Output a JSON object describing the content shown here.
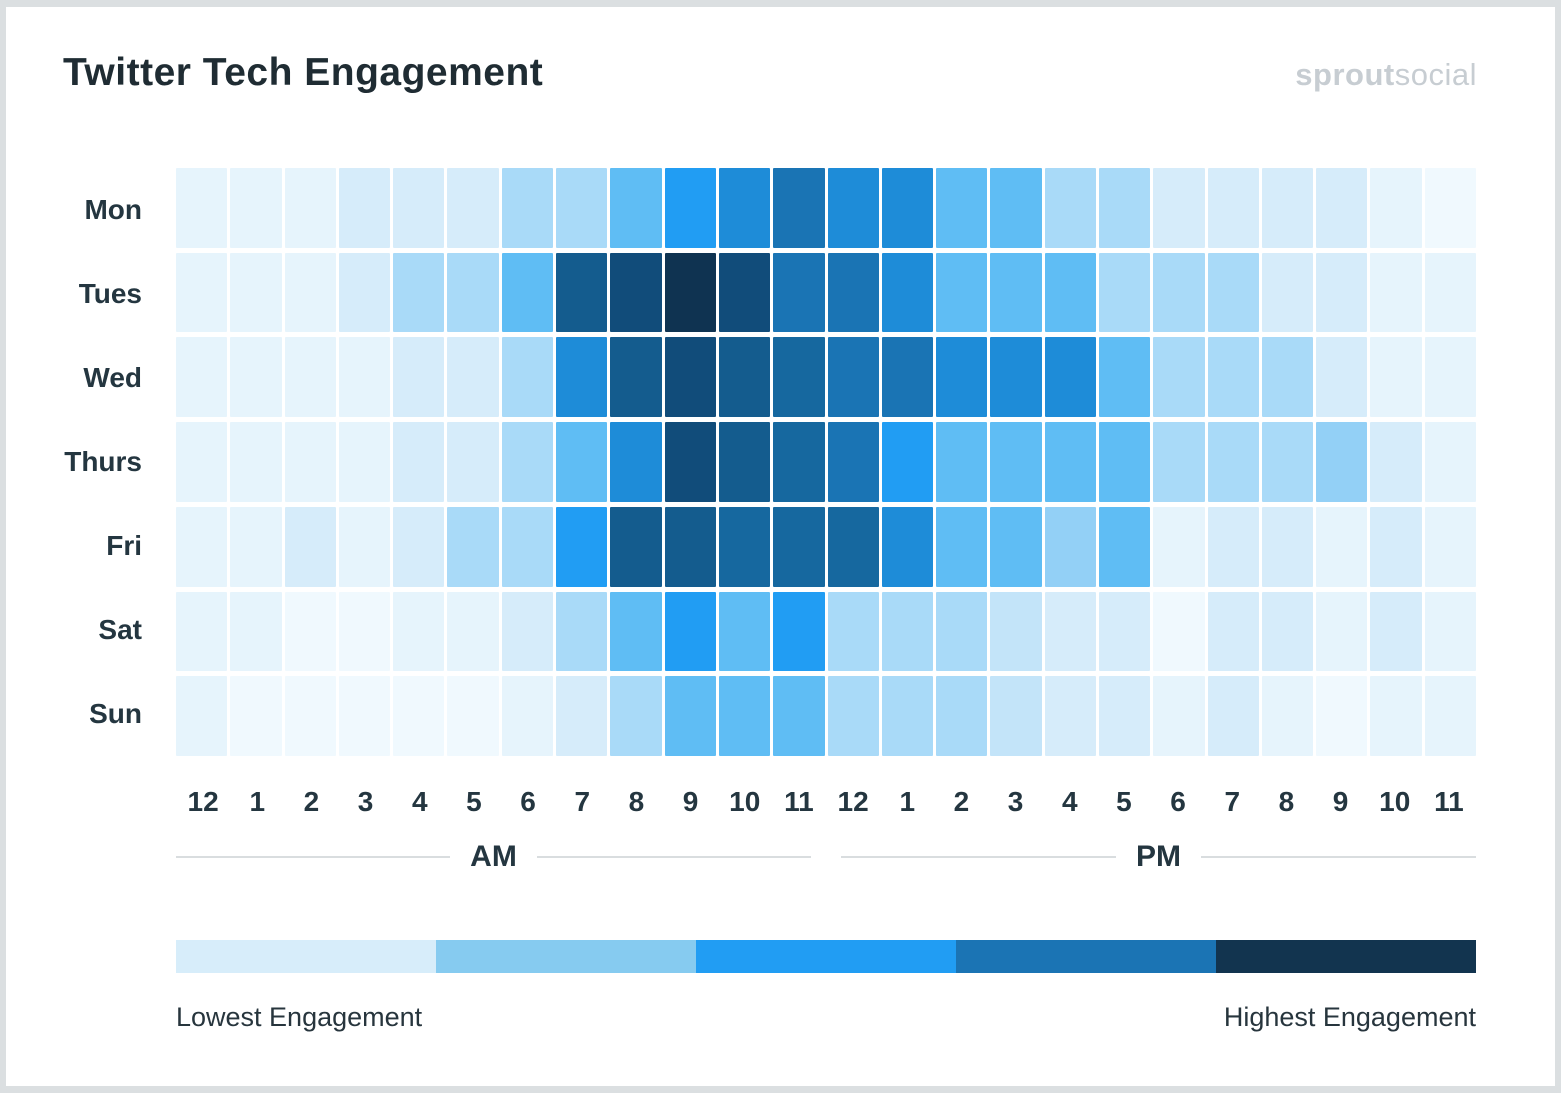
{
  "logo": {
    "bold": "sprout",
    "light": "social"
  },
  "chart_data": {
    "type": "heatmap",
    "title": "Twitter Tech Engagement",
    "rows": [
      "Mon",
      "Tues",
      "Wed",
      "Thurs",
      "Fri",
      "Sat",
      "Sun"
    ],
    "hour_labels": [
      "12",
      "1",
      "2",
      "3",
      "4",
      "5",
      "6",
      "7",
      "8",
      "9",
      "10",
      "11",
      "12",
      "1",
      "2",
      "3",
      "4",
      "5",
      "6",
      "7",
      "8",
      "9",
      "10",
      "11"
    ],
    "am_label": "AM",
    "pm_label": "PM",
    "value_scale": "engagement level index 0 (lowest) to 13 (highest)",
    "palette": [
      "#F0F9FE",
      "#E6F4FC",
      "#D6ECFA",
      "#C3E4F9",
      "#A9DAF8",
      "#93D0F6",
      "#5FBDF4",
      "#219DF3",
      "#1E8CD8",
      "#1A74B4",
      "#16689F",
      "#145C8E",
      "#114C7A",
      "#0F3351"
    ],
    "values": [
      [
        1,
        1,
        1,
        2,
        2,
        2,
        4,
        4,
        6,
        7,
        8,
        9,
        8,
        8,
        6,
        6,
        4,
        4,
        2,
        2,
        2,
        2,
        1,
        0
      ],
      [
        1,
        1,
        1,
        2,
        4,
        4,
        6,
        11,
        12,
        13,
        12,
        9,
        9,
        8,
        6,
        6,
        6,
        4,
        4,
        4,
        2,
        2,
        1,
        1
      ],
      [
        1,
        1,
        1,
        1,
        2,
        2,
        4,
        8,
        11,
        12,
        11,
        10,
        9,
        9,
        8,
        8,
        8,
        6,
        4,
        4,
        4,
        2,
        1,
        1
      ],
      [
        1,
        1,
        1,
        1,
        2,
        2,
        4,
        6,
        8,
        12,
        11,
        10,
        9,
        7,
        6,
        6,
        6,
        6,
        4,
        4,
        4,
        5,
        2,
        1
      ],
      [
        1,
        1,
        2,
        1,
        2,
        4,
        4,
        7,
        11,
        11,
        10,
        10,
        10,
        8,
        6,
        6,
        5,
        6,
        1,
        2,
        2,
        1,
        2,
        1
      ],
      [
        1,
        1,
        0,
        0,
        1,
        1,
        2,
        4,
        6,
        7,
        6,
        7,
        4,
        4,
        4,
        3,
        2,
        2,
        0,
        2,
        2,
        1,
        2,
        1
      ],
      [
        1,
        0,
        0,
        0,
        0,
        0,
        1,
        2,
        4,
        6,
        6,
        6,
        4,
        4,
        4,
        3,
        2,
        2,
        1,
        2,
        1,
        0,
        1,
        1
      ]
    ],
    "legend": {
      "colors": [
        "#D7EDFA",
        "#86CBF0",
        "#219DF3",
        "#1B74B4",
        "#12344F"
      ],
      "low_label": "Lowest Engagement",
      "high_label": "Highest Engagement"
    }
  }
}
